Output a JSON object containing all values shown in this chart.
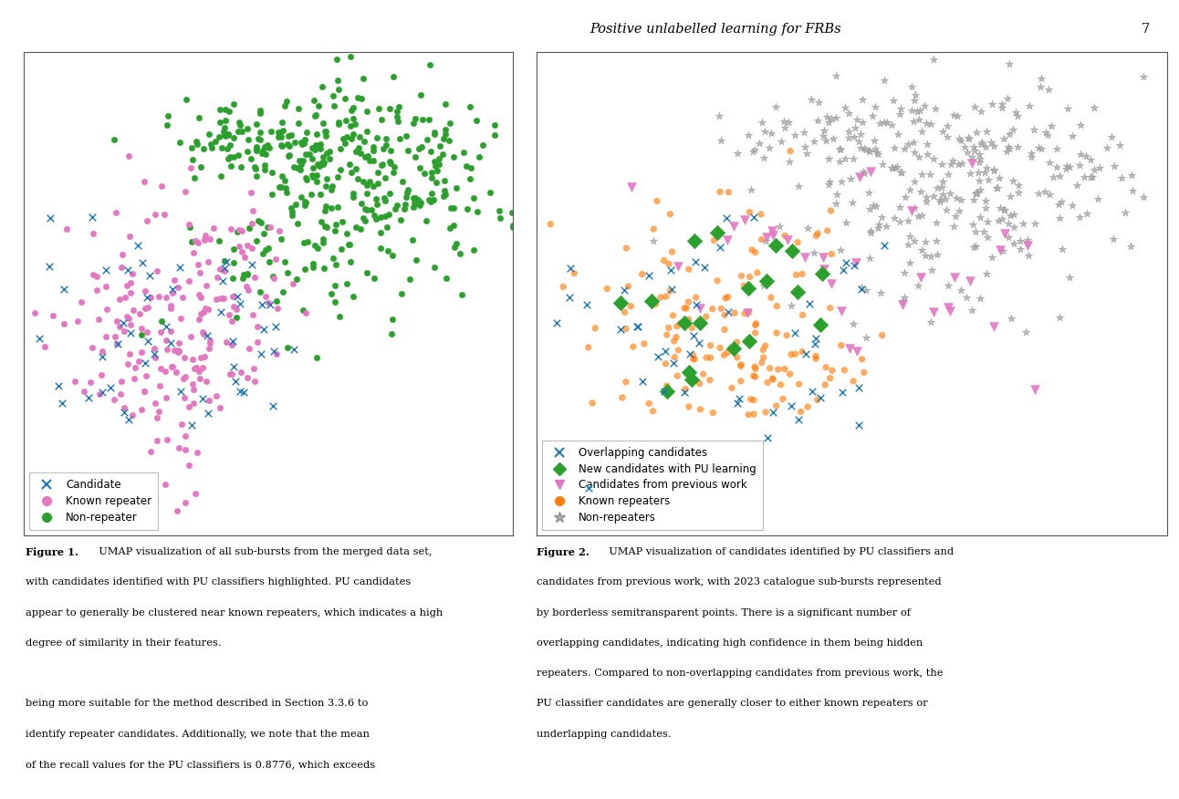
{
  "page_header": "Positive unlabelled learning for FRBs",
  "page_number": "7",
  "fig1_colors": [
    "#1f77b4",
    "#e377c2",
    "#2ca02c"
  ],
  "fig2_colors": [
    "#1f77b4",
    "#2ca02c",
    "#e377c2",
    "#ff7f0e",
    "#808080"
  ],
  "background_color": "#ffffff",
  "cap1_bold": "Figure 1.",
  "cap1_rest": "  UMAP visualization of all sub-bursts from the merged data set, with candidates identified with PU classifiers highlighted. PU candidates appear to generally be clustered near known repeaters, which indicates a high degree of similarity in their features.",
  "cap2_bold": "Figure 2.",
  "cap2_rest": "  UMAP visualization of candidates identified by PU classifiers and candidates from previous work, with 2023 catalogue sub-bursts represented by borderless semitransparent points. There is a significant number of overlapping candidates, indicating high confidence in them being hidden repeaters. Compared to non-overlapping candidates from previous work, the PU classifier candidates are generally closer to either known repeaters or underlapping candidates.",
  "body_text": "being more suitable for the method described in Section 3.3.6 to identify repeater candidates. Additionally, we note that the mean of the recall values for the PU classifiers is 0.8776, which exceeds",
  "header_italic": "Positive unlabelled learning for FRBs",
  "page_num": "7"
}
